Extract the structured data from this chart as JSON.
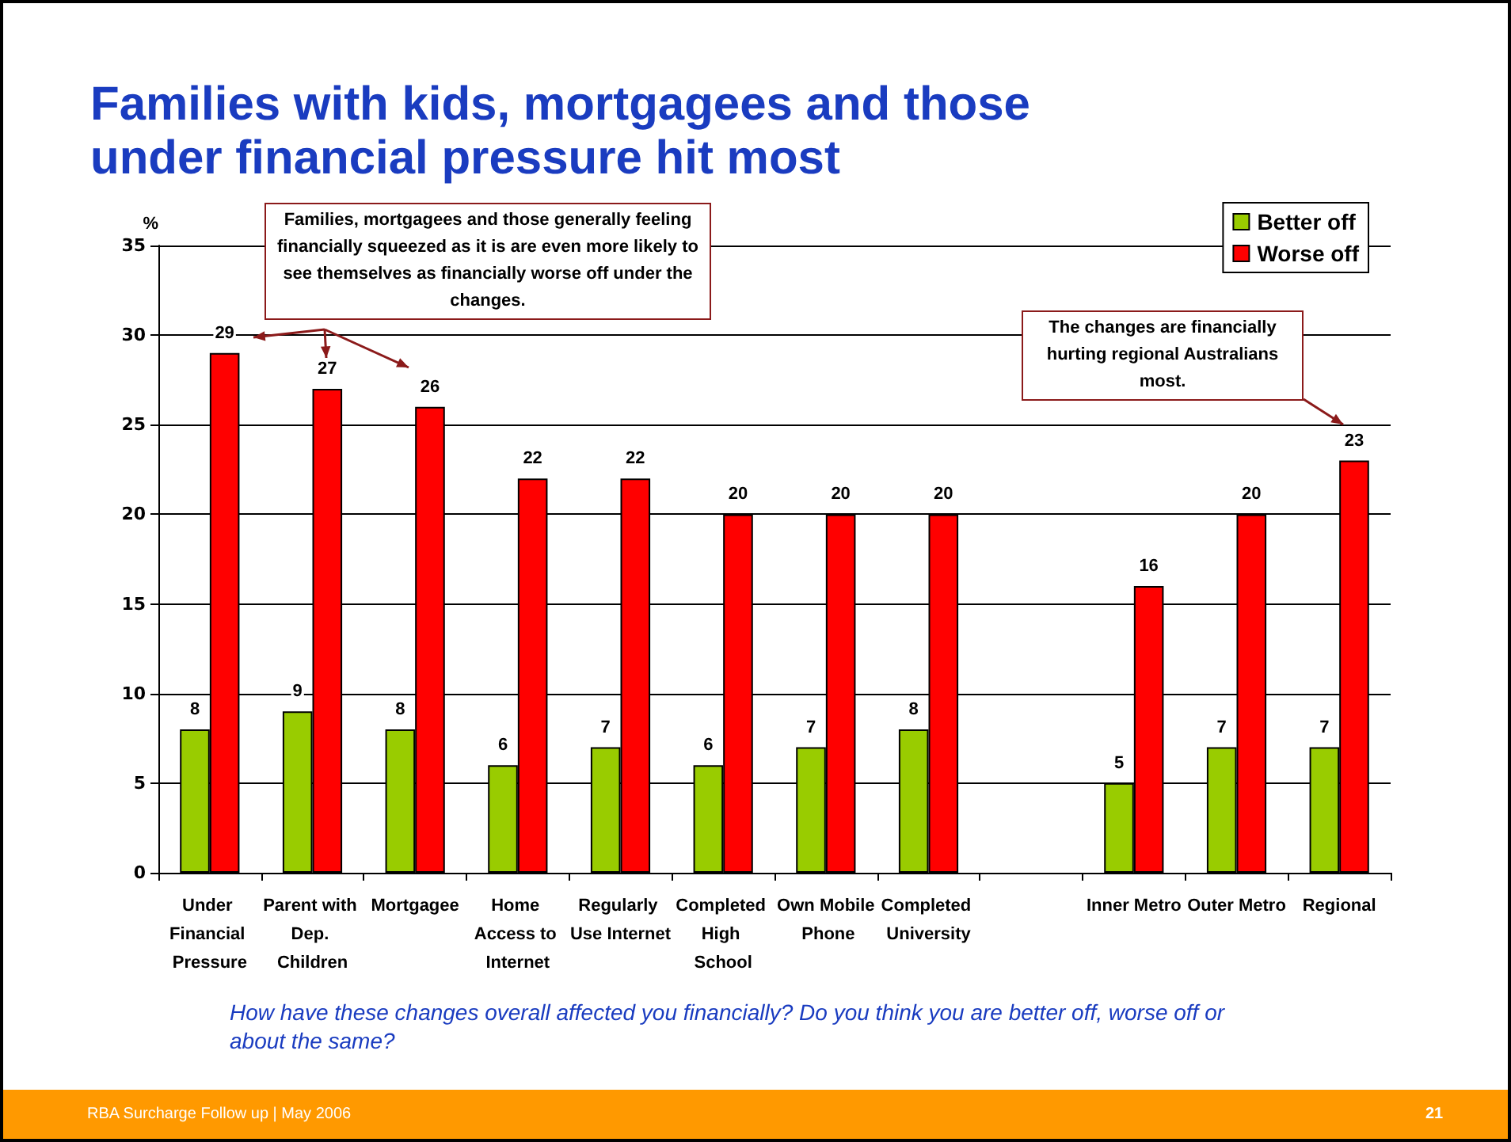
{
  "chart_data": {
    "type": "bar",
    "title": "Families with kids, mortgagees and those under financial pressure hit most",
    "ylabel": "%",
    "categories": [
      "Under Financial Pressure",
      "Parent with Dep. Children",
      "Mortgagee",
      "Home Access to Internet",
      "Regularly Use Internet",
      "Completed High School",
      "Own Mobile Phone",
      "Completed University",
      null,
      "Inner Metro",
      "Outer Metro",
      "Regional"
    ],
    "series": [
      {
        "name": "Better off",
        "color": "#99cc00",
        "values": [
          8,
          9,
          8,
          6,
          7,
          6,
          7,
          8,
          null,
          5,
          7,
          7
        ]
      },
      {
        "name": "Worse off",
        "color": "#ff0000",
        "values": [
          29,
          27,
          26,
          22,
          22,
          20,
          20,
          20,
          null,
          16,
          20,
          23
        ]
      }
    ],
    "ylim": [
      0,
      35
    ],
    "yticks": [
      0,
      5,
      10,
      15,
      20,
      25,
      30,
      35
    ],
    "grid": "y",
    "legend": "top right",
    "data_labels": true,
    "annotations": [
      "Families, mortgagees and those generally feeling financially squeezed as it is are even more likely to see themselves as financially worse off under the changes.",
      "The changes are financially hurting  regional Australians most.",
      "How have these changes overall affected you financially?  Do you think you are better off, worse off or about the same?",
      "RBA Surcharge Follow up  |  May 2006",
      "21"
    ]
  }
}
